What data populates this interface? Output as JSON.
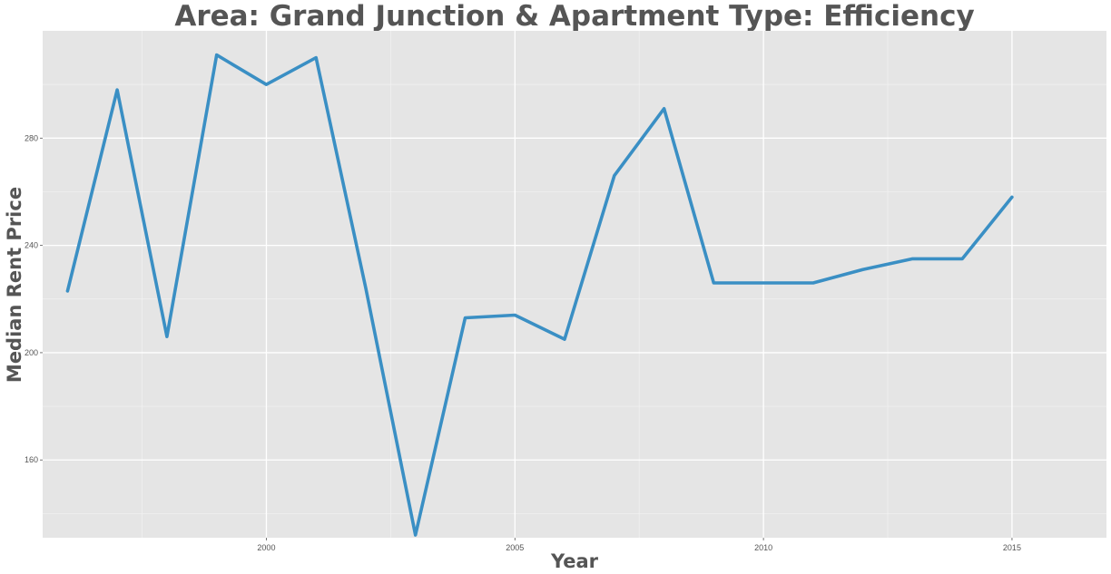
{
  "chart_data": {
    "type": "line",
    "title": "Area: Grand Junction & Apartment Type: Efficiency",
    "xlabel": "Year",
    "ylabel": "Median Rent Price",
    "xlim": [
      1995.5,
      2016.9
    ],
    "ylim": [
      131,
      320
    ],
    "x_ticks": [
      2000,
      2005,
      2010,
      2015
    ],
    "y_ticks": [
      160,
      200,
      240,
      280
    ],
    "grid": true,
    "legend": "none",
    "series": [
      {
        "color": "#3a8fc4",
        "x": [
          1996,
          1997,
          1998,
          1999,
          2000,
          2001,
          2002,
          2003,
          2004,
          2005,
          2006,
          2007,
          2008,
          2009,
          2010,
          2011,
          2012,
          2013,
          2014,
          2015
        ],
        "y": [
          223,
          298,
          206,
          311,
          300,
          310,
          224,
          132,
          213,
          214,
          205,
          266,
          291,
          226,
          226,
          226,
          231,
          235,
          235,
          258
        ]
      }
    ]
  },
  "colors": {
    "panel_background": "#e5e5e5",
    "grid": "#ffffff",
    "text": "#555555"
  }
}
